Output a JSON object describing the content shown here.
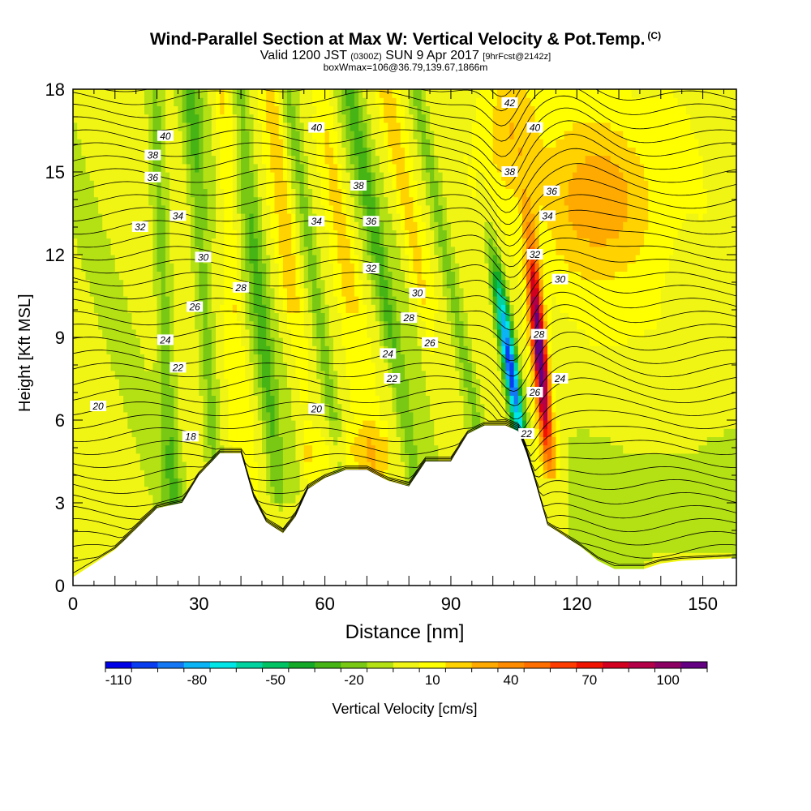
{
  "header": {
    "title": "Wind-Parallel Section at Max W: Vertical Velocity & Pot.Temp.",
    "title_mark": "(C)",
    "valid_prefix": "Valid 1200 JST",
    "valid_utc": "(0300Z)",
    "valid_date": "SUN 9 Apr 2017",
    "forecast": "[9hrFcst@2142z]",
    "box_info": "boxWmax=106@36.79,139.67,1866m"
  },
  "chart_data": {
    "type": "heatmap",
    "xlabel": "Distance [nm]",
    "ylabel": "Height [Kft MSL]",
    "xlim": [
      0,
      158
    ],
    "ylim": [
      0,
      18
    ],
    "x_ticks": [
      0,
      30,
      60,
      90,
      120,
      150
    ],
    "y_ticks": [
      0,
      3,
      6,
      9,
      12,
      15,
      18
    ],
    "colorbar": {
      "label": "Vertical Velocity [cm/s]",
      "tick_labels": [
        "-110",
        "-80",
        "-50",
        "-20",
        "10",
        "40",
        "70",
        "100"
      ],
      "colors": [
        "#0000e6",
        "#0a3cf0",
        "#1478f5",
        "#0ab4f5",
        "#00e6e6",
        "#00d2a0",
        "#00c364",
        "#14aa28",
        "#46b414",
        "#78c814",
        "#b4e114",
        "#f0f514",
        "#ffff00",
        "#ffd200",
        "#ffaa00",
        "#ff8c00",
        "#ff6e00",
        "#ff3c00",
        "#f01400",
        "#d2001e",
        "#b40046",
        "#8c0064",
        "#640082"
      ]
    },
    "terrain_kft": [
      [
        0,
        0.3
      ],
      [
        10,
        1.3
      ],
      [
        20,
        2.8
      ],
      [
        26,
        3
      ],
      [
        30,
        4
      ],
      [
        35,
        4.8
      ],
      [
        40,
        4.8
      ],
      [
        43,
        3.2
      ],
      [
        46,
        2.3
      ],
      [
        50,
        1.9
      ],
      [
        53,
        2.5
      ],
      [
        56,
        3.5
      ],
      [
        60,
        3.9
      ],
      [
        65,
        4.2
      ],
      [
        70,
        4.2
      ],
      [
        75,
        3.8
      ],
      [
        80,
        3.6
      ],
      [
        84,
        4.5
      ],
      [
        90,
        4.5
      ],
      [
        94,
        5.5
      ],
      [
        98,
        5.8
      ],
      [
        103,
        5.8
      ],
      [
        106,
        5.6
      ],
      [
        108,
        4.8
      ],
      [
        110,
        3.8
      ],
      [
        113,
        2.2
      ],
      [
        117,
        1.8
      ],
      [
        121,
        1.4
      ],
      [
        125,
        0.9
      ],
      [
        129,
        0.6
      ],
      [
        136,
        0.6
      ],
      [
        140,
        0.8
      ],
      [
        145,
        0.9
      ],
      [
        158,
        1
      ]
    ],
    "potential_temperature_contours": [
      "18",
      "20",
      "22",
      "24",
      "26",
      "28",
      "30",
      "32",
      "34",
      "36",
      "38",
      "40",
      "42"
    ],
    "contour_label_positions": [
      {
        "text": "40",
        "x": 22,
        "y": 16.3
      },
      {
        "text": "38",
        "x": 19,
        "y": 15.6
      },
      {
        "text": "36",
        "x": 19,
        "y": 14.8
      },
      {
        "text": "34",
        "x": 25,
        "y": 13.4
      },
      {
        "text": "32",
        "x": 16,
        "y": 13.0
      },
      {
        "text": "30",
        "x": 31,
        "y": 11.9
      },
      {
        "text": "28",
        "x": 40,
        "y": 10.8
      },
      {
        "text": "26",
        "x": 29,
        "y": 10.1
      },
      {
        "text": "24",
        "x": 22,
        "y": 8.9
      },
      {
        "text": "22",
        "x": 25,
        "y": 7.9
      },
      {
        "text": "20",
        "x": 6,
        "y": 6.5
      },
      {
        "text": "18",
        "x": 28,
        "y": 5.4
      },
      {
        "text": "40",
        "x": 58,
        "y": 16.6
      },
      {
        "text": "38",
        "x": 68,
        "y": 14.5
      },
      {
        "text": "36",
        "x": 71,
        "y": 13.2
      },
      {
        "text": "34",
        "x": 58,
        "y": 13.2
      },
      {
        "text": "32",
        "x": 71,
        "y": 11.5
      },
      {
        "text": "30",
        "x": 82,
        "y": 10.6
      },
      {
        "text": "28",
        "x": 80,
        "y": 9.7
      },
      {
        "text": "26",
        "x": 85,
        "y": 8.8
      },
      {
        "text": "24",
        "x": 75,
        "y": 8.4
      },
      {
        "text": "22",
        "x": 76,
        "y": 7.5
      },
      {
        "text": "20",
        "x": 58,
        "y": 6.4
      },
      {
        "text": "42",
        "x": 104,
        "y": 17.5
      },
      {
        "text": "40",
        "x": 110,
        "y": 16.6
      },
      {
        "text": "38",
        "x": 104,
        "y": 15.0
      },
      {
        "text": "36",
        "x": 114,
        "y": 14.3
      },
      {
        "text": "34",
        "x": 113,
        "y": 13.4
      },
      {
        "text": "32",
        "x": 110,
        "y": 12.0
      },
      {
        "text": "30",
        "x": 116,
        "y": 11.1
      },
      {
        "text": "28",
        "x": 111,
        "y": 9.1
      },
      {
        "text": "26",
        "x": 110,
        "y": 7.0
      },
      {
        "text": "24",
        "x": 116,
        "y": 7.5
      },
      {
        "text": "22",
        "x": 108,
        "y": 5.5
      }
    ]
  }
}
